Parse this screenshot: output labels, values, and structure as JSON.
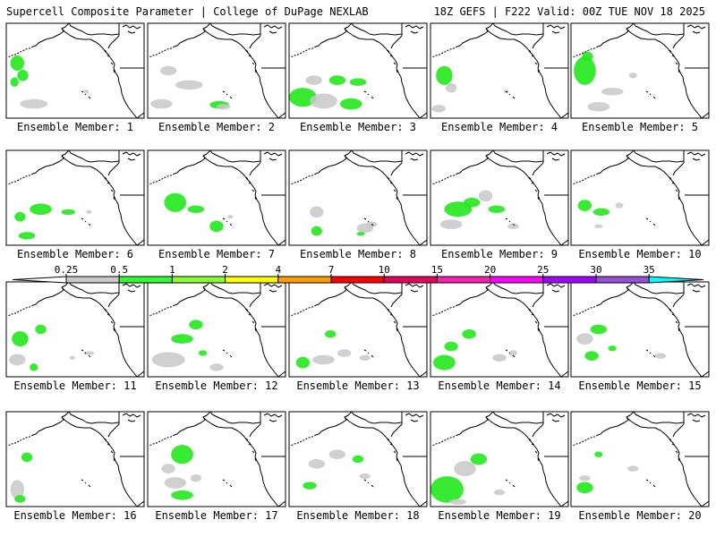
{
  "header": {
    "left_title": "Supercell Composite Parameter | College of DuPage NEXLAB",
    "right_title": "18Z GEFS | F222 Valid: 00Z TUE NOV 18 2025"
  },
  "member_label_prefix": "Ensemble Member: ",
  "members": [
    {
      "id": "1",
      "blobs": [
        [
          0.08,
          0.42,
          0.05,
          0.08,
          "g"
        ],
        [
          0.12,
          0.55,
          0.04,
          0.06,
          "g"
        ],
        [
          0.06,
          0.62,
          0.03,
          0.05,
          "g"
        ],
        [
          0.2,
          0.85,
          0.1,
          0.05,
          "s"
        ],
        [
          0.58,
          0.72,
          0.02,
          0.02,
          "s"
        ]
      ]
    },
    {
      "id": "2",
      "blobs": [
        [
          0.15,
          0.5,
          0.06,
          0.05,
          "s"
        ],
        [
          0.3,
          0.65,
          0.1,
          0.05,
          "s"
        ],
        [
          0.1,
          0.85,
          0.08,
          0.05,
          "s"
        ],
        [
          0.52,
          0.86,
          0.07,
          0.04,
          "g"
        ],
        [
          0.55,
          0.88,
          0.05,
          0.03,
          "s"
        ]
      ]
    },
    {
      "id": "3",
      "blobs": [
        [
          0.1,
          0.78,
          0.1,
          0.1,
          "g"
        ],
        [
          0.25,
          0.82,
          0.1,
          0.08,
          "s"
        ],
        [
          0.45,
          0.85,
          0.08,
          0.06,
          "g"
        ],
        [
          0.35,
          0.6,
          0.06,
          0.05,
          "g"
        ],
        [
          0.5,
          0.62,
          0.06,
          0.04,
          "g"
        ],
        [
          0.18,
          0.6,
          0.06,
          0.05,
          "s"
        ]
      ]
    },
    {
      "id": "4",
      "blobs": [
        [
          0.1,
          0.55,
          0.06,
          0.1,
          "g"
        ],
        [
          0.15,
          0.68,
          0.04,
          0.05,
          "s"
        ],
        [
          0.06,
          0.9,
          0.05,
          0.04,
          "s"
        ],
        [
          0.55,
          0.72,
          0.02,
          0.02,
          "s"
        ]
      ]
    },
    {
      "id": "5",
      "blobs": [
        [
          0.1,
          0.5,
          0.08,
          0.15,
          "g"
        ],
        [
          0.3,
          0.72,
          0.08,
          0.04,
          "s"
        ],
        [
          0.2,
          0.88,
          0.08,
          0.05,
          "s"
        ],
        [
          0.45,
          0.55,
          0.03,
          0.03,
          "s"
        ],
        [
          0.12,
          0.35,
          0.04,
          0.05,
          "g"
        ]
      ]
    },
    {
      "id": "6",
      "blobs": [
        [
          0.25,
          0.62,
          0.08,
          0.06,
          "g"
        ],
        [
          0.45,
          0.65,
          0.05,
          0.03,
          "g"
        ],
        [
          0.1,
          0.7,
          0.04,
          0.05,
          "g"
        ],
        [
          0.15,
          0.9,
          0.06,
          0.04,
          "g"
        ],
        [
          0.6,
          0.65,
          0.02,
          0.02,
          "s"
        ]
      ]
    },
    {
      "id": "7",
      "blobs": [
        [
          0.2,
          0.55,
          0.08,
          0.1,
          "g"
        ],
        [
          0.35,
          0.62,
          0.06,
          0.04,
          "g"
        ],
        [
          0.5,
          0.8,
          0.05,
          0.06,
          "g"
        ],
        [
          0.6,
          0.7,
          0.02,
          0.02,
          "s"
        ]
      ]
    },
    {
      "id": "8",
      "blobs": [
        [
          0.2,
          0.65,
          0.05,
          0.06,
          "s"
        ],
        [
          0.2,
          0.85,
          0.04,
          0.05,
          "g"
        ],
        [
          0.55,
          0.82,
          0.06,
          0.05,
          "s"
        ],
        [
          0.6,
          0.78,
          0.04,
          0.03,
          "s"
        ],
        [
          0.52,
          0.88,
          0.03,
          0.02,
          "g"
        ]
      ]
    },
    {
      "id": "9",
      "blobs": [
        [
          0.2,
          0.62,
          0.1,
          0.08,
          "g"
        ],
        [
          0.3,
          0.55,
          0.06,
          0.05,
          "g"
        ],
        [
          0.15,
          0.78,
          0.08,
          0.05,
          "s"
        ],
        [
          0.48,
          0.62,
          0.06,
          0.04,
          "g"
        ],
        [
          0.4,
          0.48,
          0.05,
          0.06,
          "s"
        ],
        [
          0.6,
          0.8,
          0.04,
          0.03,
          "s"
        ]
      ]
    },
    {
      "id": "10",
      "blobs": [
        [
          0.1,
          0.58,
          0.05,
          0.06,
          "g"
        ],
        [
          0.22,
          0.65,
          0.06,
          0.04,
          "g"
        ],
        [
          0.35,
          0.58,
          0.03,
          0.03,
          "s"
        ],
        [
          0.2,
          0.8,
          0.03,
          0.02,
          "s"
        ]
      ]
    },
    {
      "id": "11",
      "blobs": [
        [
          0.1,
          0.6,
          0.06,
          0.08,
          "g"
        ],
        [
          0.25,
          0.5,
          0.04,
          0.05,
          "g"
        ],
        [
          0.08,
          0.82,
          0.06,
          0.06,
          "s"
        ],
        [
          0.2,
          0.9,
          0.03,
          0.04,
          "g"
        ],
        [
          0.6,
          0.75,
          0.04,
          0.02,
          "s"
        ],
        [
          0.48,
          0.8,
          0.02,
          0.02,
          "s"
        ]
      ]
    },
    {
      "id": "12",
      "blobs": [
        [
          0.15,
          0.82,
          0.12,
          0.08,
          "s"
        ],
        [
          0.25,
          0.6,
          0.08,
          0.05,
          "g"
        ],
        [
          0.35,
          0.45,
          0.05,
          0.05,
          "g"
        ],
        [
          0.5,
          0.9,
          0.05,
          0.04,
          "s"
        ],
        [
          0.4,
          0.75,
          0.03,
          0.03,
          "g"
        ]
      ]
    },
    {
      "id": "13",
      "blobs": [
        [
          0.1,
          0.85,
          0.05,
          0.06,
          "g"
        ],
        [
          0.25,
          0.82,
          0.08,
          0.05,
          "s"
        ],
        [
          0.4,
          0.75,
          0.05,
          0.04,
          "s"
        ],
        [
          0.3,
          0.55,
          0.04,
          0.04,
          "g"
        ],
        [
          0.55,
          0.8,
          0.04,
          0.03,
          "s"
        ]
      ]
    },
    {
      "id": "14",
      "blobs": [
        [
          0.1,
          0.85,
          0.08,
          0.08,
          "g"
        ],
        [
          0.15,
          0.68,
          0.05,
          0.05,
          "g"
        ],
        [
          0.28,
          0.55,
          0.05,
          0.05,
          "g"
        ],
        [
          0.5,
          0.8,
          0.05,
          0.04,
          "s"
        ],
        [
          0.6,
          0.75,
          0.03,
          0.03,
          "s"
        ]
      ]
    },
    {
      "id": "15",
      "blobs": [
        [
          0.1,
          0.6,
          0.06,
          0.06,
          "s"
        ],
        [
          0.2,
          0.5,
          0.06,
          0.05,
          "g"
        ],
        [
          0.15,
          0.78,
          0.05,
          0.05,
          "g"
        ],
        [
          0.3,
          0.7,
          0.03,
          0.03,
          "g"
        ],
        [
          0.65,
          0.78,
          0.04,
          0.03,
          "s"
        ]
      ]
    },
    {
      "id": "16",
      "blobs": [
        [
          0.08,
          0.82,
          0.05,
          0.1,
          "s"
        ],
        [
          0.15,
          0.48,
          0.04,
          0.05,
          "g"
        ],
        [
          0.1,
          0.92,
          0.04,
          0.04,
          "g"
        ]
      ]
    },
    {
      "id": "17",
      "blobs": [
        [
          0.25,
          0.45,
          0.08,
          0.1,
          "g"
        ],
        [
          0.2,
          0.75,
          0.08,
          0.06,
          "s"
        ],
        [
          0.25,
          0.88,
          0.08,
          0.05,
          "g"
        ],
        [
          0.15,
          0.6,
          0.05,
          0.05,
          "s"
        ],
        [
          0.35,
          0.7,
          0.04,
          0.04,
          "s"
        ]
      ]
    },
    {
      "id": "18",
      "blobs": [
        [
          0.2,
          0.55,
          0.06,
          0.05,
          "s"
        ],
        [
          0.35,
          0.45,
          0.06,
          0.05,
          "s"
        ],
        [
          0.5,
          0.5,
          0.04,
          0.04,
          "g"
        ],
        [
          0.55,
          0.68,
          0.04,
          0.03,
          "s"
        ],
        [
          0.15,
          0.78,
          0.05,
          0.04,
          "g"
        ]
      ]
    },
    {
      "id": "19",
      "blobs": [
        [
          0.12,
          0.82,
          0.12,
          0.14,
          "g"
        ],
        [
          0.25,
          0.6,
          0.08,
          0.08,
          "s"
        ],
        [
          0.35,
          0.5,
          0.06,
          0.06,
          "g"
        ],
        [
          0.2,
          0.95,
          0.06,
          0.03,
          "s"
        ],
        [
          0.5,
          0.85,
          0.04,
          0.03,
          "s"
        ]
      ]
    },
    {
      "id": "20",
      "blobs": [
        [
          0.1,
          0.8,
          0.06,
          0.06,
          "g"
        ],
        [
          0.2,
          0.45,
          0.03,
          0.03,
          "g"
        ],
        [
          0.45,
          0.6,
          0.04,
          0.03,
          "s"
        ],
        [
          0.1,
          0.7,
          0.04,
          0.03,
          "s"
        ]
      ]
    }
  ],
  "legend": {
    "labels": [
      "0.25",
      "0.5",
      "1",
      "2",
      "4",
      "7",
      "10",
      "15",
      "20",
      "25",
      "30",
      "35"
    ],
    "colors": [
      "#c8c8c8",
      "#32ff32",
      "#8cff32",
      "#ffff00",
      "#ff9c00",
      "#ff0000",
      "#e6005a",
      "#ff1eb4",
      "#ff00ff",
      "#a000ff",
      "#9650dc",
      "#00ffff"
    ]
  },
  "colors": {
    "green": "#22e81c",
    "gray": "#c8c8c8",
    "map": "#000000"
  }
}
